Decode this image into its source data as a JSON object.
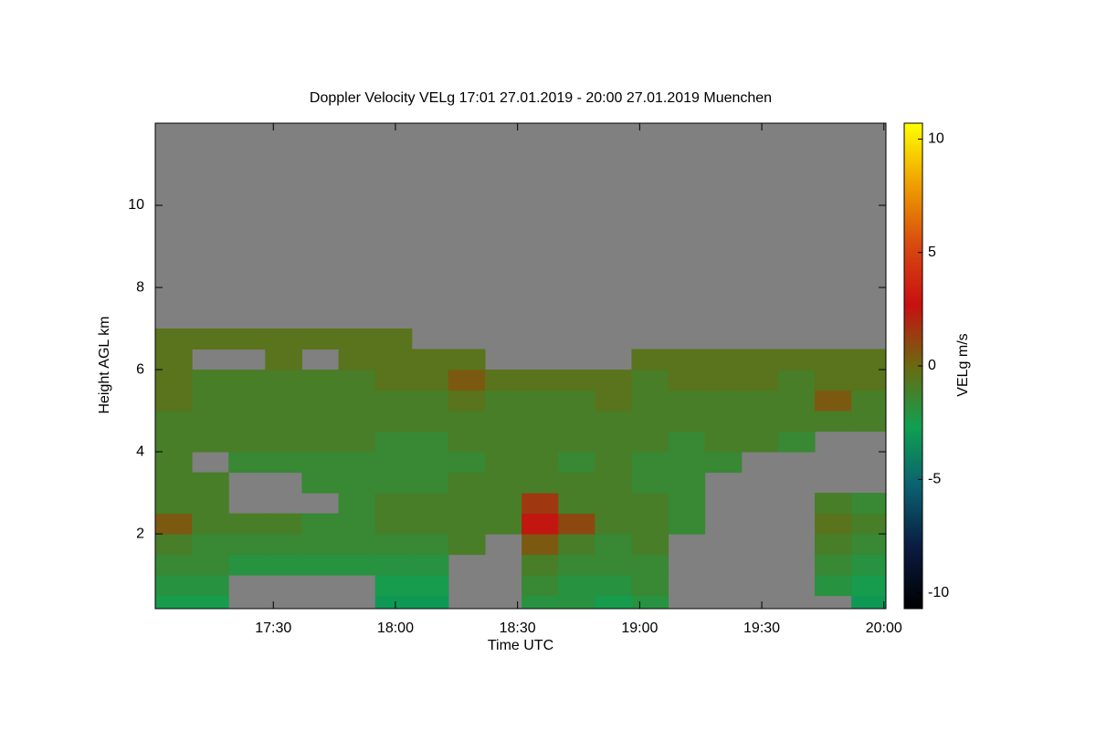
{
  "chart_data": {
    "type": "heatmap",
    "title": "Doppler Velocity VELg   17:01 27.01.2019 - 20:00 27.01.2019 Muenchen",
    "x_label": "Time UTC",
    "y_label": "Height AGL km",
    "colorbar_label": "VELg m/s",
    "xlim": [
      1021,
      1200.5
    ],
    "xticks": [
      {
        "value": 1050,
        "label": "17:30"
      },
      {
        "value": 1080,
        "label": "18:00"
      },
      {
        "value": 1110,
        "label": "18:30"
      },
      {
        "value": 1140,
        "label": "19:00"
      },
      {
        "value": 1170,
        "label": "19:30"
      },
      {
        "value": 1200,
        "label": "20:00"
      }
    ],
    "ylim": [
      0.18,
      12
    ],
    "yticks": [
      2,
      4,
      6,
      8,
      10
    ],
    "zlim": [
      -10.7,
      10.7
    ],
    "zticks": [
      -10,
      -5,
      0,
      5,
      10
    ],
    "colorscale": [
      "#000000",
      "#0a1a40",
      "#0a6070",
      "#10a050",
      "#6a6a10",
      "#c81010",
      "#d84a10",
      "#f0a000",
      "#ffff00"
    ],
    "nodata_color": "#808080",
    "x": [
      1021,
      1030,
      1039,
      1048,
      1057,
      1066,
      1075,
      1084,
      1093,
      1102,
      1111,
      1120,
      1129,
      1138,
      1147,
      1156,
      1165,
      1174,
      1183,
      1192,
      1201
    ],
    "y": [
      0.18,
      0.5,
      1,
      1.5,
      2,
      2.5,
      3,
      3.5,
      4,
      4.5,
      5,
      5.5,
      6,
      6.5,
      7
    ],
    "z": [
      [
        -2.5,
        -2.5,
        null,
        null,
        null,
        null,
        -3,
        -3,
        null,
        null,
        -2,
        -2,
        -2.5,
        -2,
        null,
        null,
        null,
        null,
        null,
        -3
      ],
      [
        -2,
        -2,
        null,
        null,
        null,
        null,
        -2.5,
        -2.5,
        null,
        null,
        -1.5,
        -2,
        -2,
        -1.5,
        null,
        null,
        null,
        null,
        -2,
        -2.5
      ],
      [
        -1.5,
        -1.5,
        -2,
        -2,
        -2,
        -2,
        -2,
        -2,
        null,
        null,
        -1,
        -1.5,
        -1.5,
        -1.5,
        null,
        null,
        null,
        null,
        -1.5,
        -2
      ],
      [
        -1,
        -1.5,
        -1.5,
        -1.5,
        -1.5,
        -1.5,
        -1.5,
        -1.5,
        -1,
        null,
        0.5,
        -1,
        -1.5,
        -1,
        null,
        null,
        null,
        null,
        -1,
        -1.5
      ],
      [
        0.5,
        -1,
        -1,
        -1,
        -1.5,
        -1.5,
        -1,
        -1,
        -1,
        -1,
        2.5,
        1,
        -1,
        -1,
        -1.5,
        null,
        null,
        null,
        -0.5,
        -1
      ],
      [
        -1,
        -1,
        null,
        null,
        null,
        -1.5,
        -1,
        -1,
        -1,
        -1,
        1.5,
        -1,
        -1,
        -1,
        -1.5,
        null,
        null,
        null,
        -1,
        -1.5
      ],
      [
        -1,
        -1,
        null,
        null,
        -1.5,
        -1.5,
        -1.5,
        -1.5,
        -1,
        -1,
        -1,
        -1,
        -1,
        -1.5,
        -1.5,
        null,
        null,
        null,
        null,
        null
      ],
      [
        -1,
        null,
        -1.5,
        -1.5,
        -1.5,
        -1.5,
        -1.5,
        -1.5,
        -1.5,
        -1,
        -1,
        -1.5,
        -1,
        -1.5,
        -1.5,
        -1.5,
        null,
        null,
        null,
        null
      ],
      [
        -1,
        -1,
        -1,
        -1,
        -1,
        -1,
        -1.5,
        -1.5,
        -1,
        -1,
        -1,
        -1,
        -1,
        -1,
        -1.5,
        -1,
        -1,
        -1.5,
        null,
        null
      ],
      [
        -1,
        -1,
        -1,
        -1,
        -1,
        -1,
        -1,
        -1,
        -1,
        -1,
        -1,
        -1,
        -1,
        -1,
        -1,
        -1,
        -1,
        -1,
        -1,
        -1
      ],
      [
        -0.5,
        -1,
        -1,
        -1,
        -1,
        -1,
        -1,
        -1,
        -0.5,
        -1,
        -1,
        -1,
        -0.5,
        -1,
        -1,
        -1,
        -1,
        -1,
        0.5,
        -1
      ],
      [
        -0.5,
        -1,
        -1,
        -1,
        -1,
        -1,
        -0.5,
        -0.5,
        0.5,
        -0.5,
        -0.5,
        -0.5,
        -0.5,
        -1,
        -0.5,
        -0.5,
        -0.5,
        -1,
        -0.5,
        -0.5
      ],
      [
        -0.5,
        null,
        null,
        -0.5,
        null,
        -0.5,
        -0.5,
        -0.5,
        -0.5,
        null,
        null,
        null,
        null,
        -0.5,
        -0.5,
        -0.5,
        -0.5,
        -0.5,
        -0.5,
        -0.5
      ],
      [
        -0.5,
        -0.5,
        -0.5,
        -0.5,
        -0.5,
        -0.5,
        -0.5,
        null,
        null,
        null,
        null,
        null,
        null,
        null,
        null,
        null,
        null,
        null,
        null,
        null
      ]
    ]
  }
}
